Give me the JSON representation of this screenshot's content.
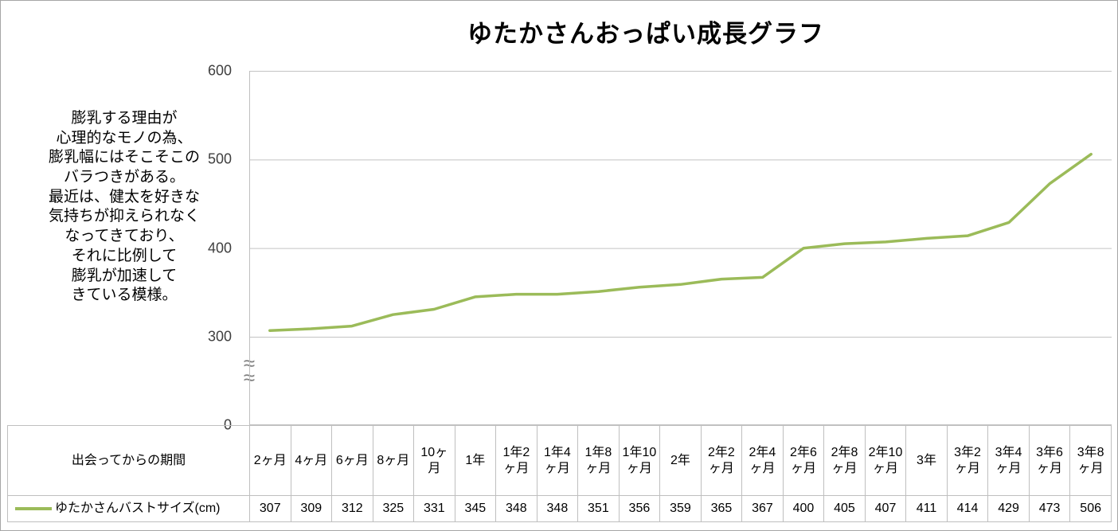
{
  "annotation": {
    "text": "膨乳する理由が\n心理的なモノの為、\n膨乳幅にはそこそこの\nバラつきがある。\n最近は、健太を好きな\n気持ちが抑えられなく\nなってきており、\nそれに比例して\n膨乳が加速して\nきている模様。"
  },
  "axis_break_symbol": "≈\n≈",
  "chart_data": {
    "type": "line",
    "title": "ゆたかさんおっぱい成長グラフ",
    "x_label_row": "出会ってからの期間",
    "series_label": "ゆたかさんバストサイズ(cm)",
    "categories": [
      "2ヶ月",
      "4ヶ月",
      "6ヶ月",
      "8ヶ月",
      "10ヶ月",
      "1年",
      "1年2ヶ月",
      "1年4ヶ月",
      "1年8ヶ月",
      "1年10ヶ月",
      "2年",
      "2年2ヶ月",
      "2年4ヶ月",
      "2年6ヶ月",
      "2年8ヶ月",
      "2年10ヶ月",
      "3年",
      "3年2ヶ月",
      "3年4ヶ月",
      "3年6ヶ月",
      "3年8ヶ月"
    ],
    "values": [
      307,
      309,
      312,
      325,
      331,
      345,
      348,
      348,
      351,
      356,
      359,
      365,
      367,
      400,
      405,
      407,
      411,
      414,
      429,
      473,
      506
    ],
    "y_ticks": [
      600,
      500,
      400,
      300,
      0
    ],
    "y_axis_break_between": [
      0,
      300
    ],
    "ylim_upper_segment": [
      300,
      600
    ],
    "line_color": "#9BBB59",
    "grid": true,
    "legend_position": "bottom-left-of-data-table"
  }
}
